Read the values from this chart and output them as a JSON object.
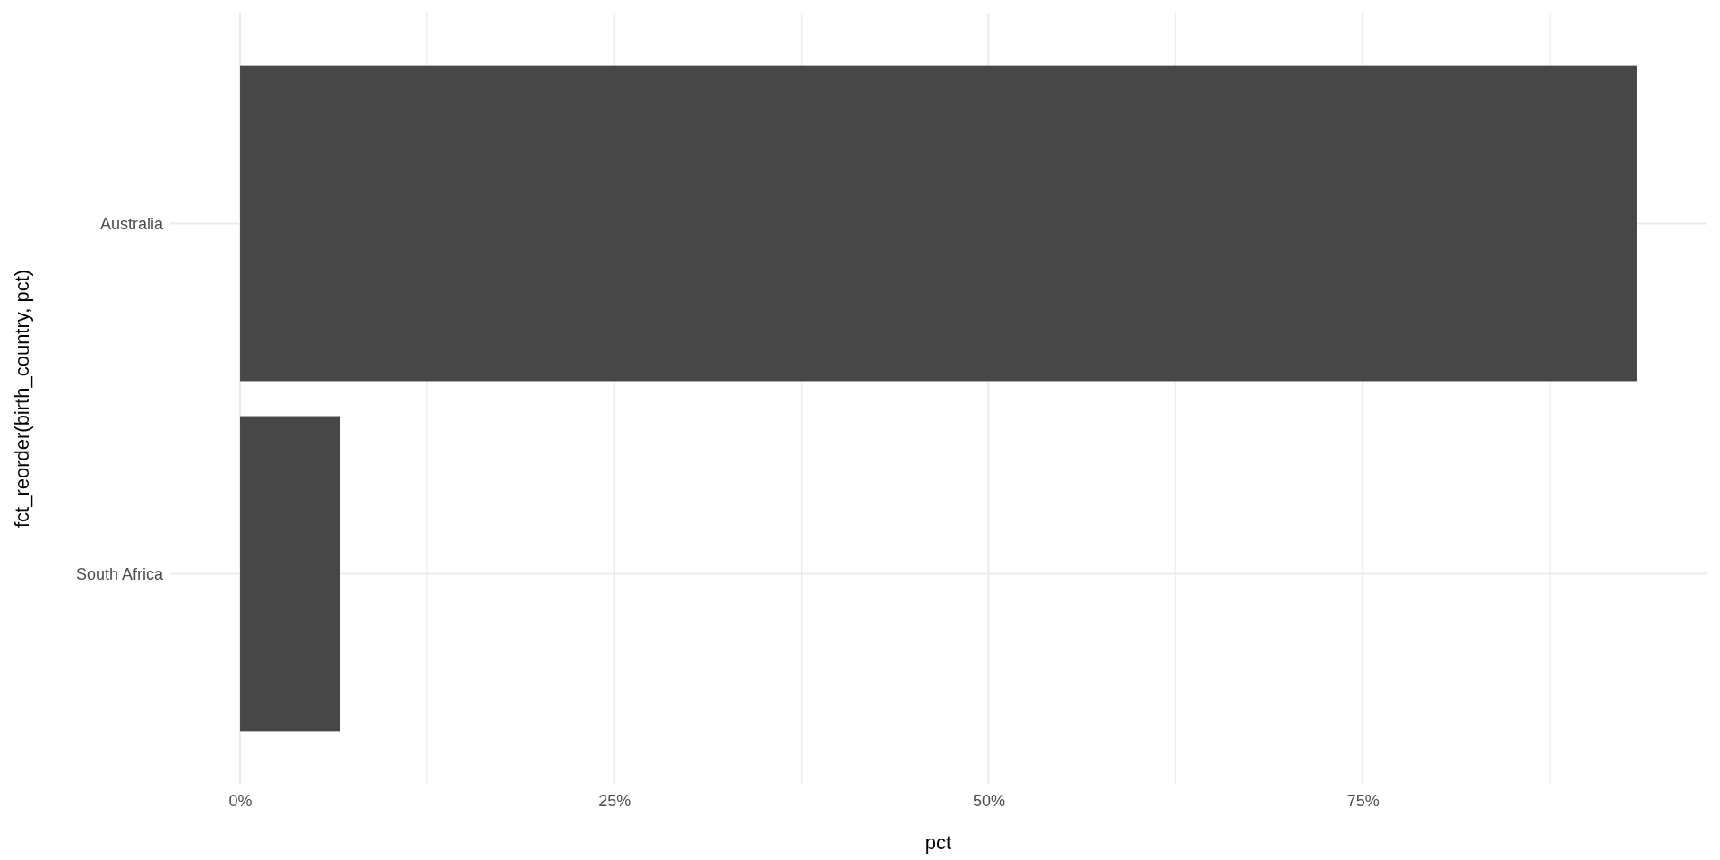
{
  "chart_data": {
    "type": "bar",
    "orientation": "horizontal",
    "categories": [
      "Australia",
      "South Africa"
    ],
    "values": [
      93.3,
      6.7
    ],
    "color": "#474747",
    "xlabel": "pct",
    "ylabel": "fct_reorder(birth_country, pct)",
    "xlim": [
      -4.67,
      97.97
    ],
    "xticks": [
      {
        "value": 0,
        "label": "0%"
      },
      {
        "value": 12.5,
        "label": null
      },
      {
        "value": 25,
        "label": "25%"
      },
      {
        "value": 37.5,
        "label": null
      },
      {
        "value": 50,
        "label": "50%"
      },
      {
        "value": 62.5,
        "label": null
      },
      {
        "value": 75,
        "label": "75%"
      },
      {
        "value": 87.5,
        "label": null
      }
    ],
    "grid": true
  }
}
